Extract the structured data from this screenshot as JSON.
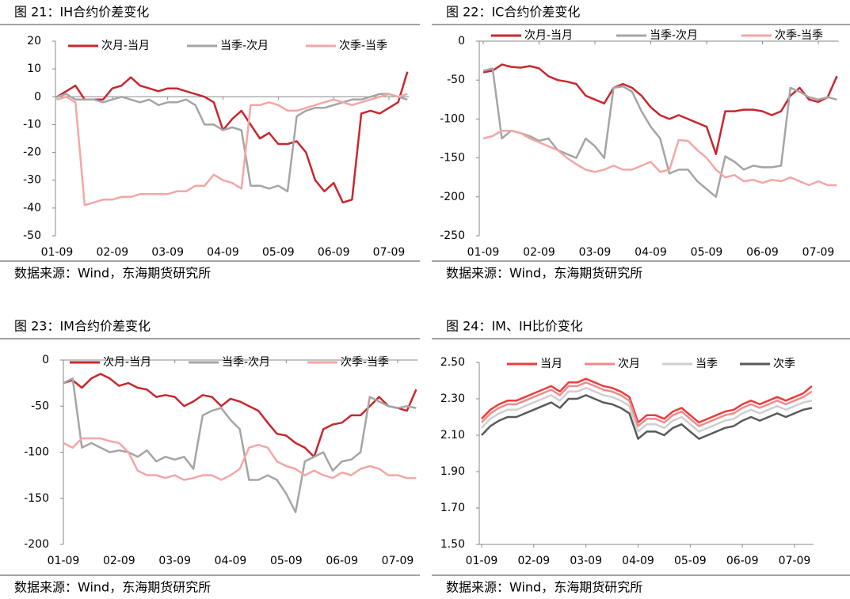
{
  "chart_data": [
    {
      "type": "line",
      "title": "图 21：IH合约价差变化",
      "source": "数据来源：Wind，东海期货研究所",
      "categories": [
        "01-09",
        null,
        null,
        null,
        null,
        null,
        "02-09",
        null,
        null,
        null,
        null,
        null,
        "03-09",
        null,
        null,
        null,
        null,
        null,
        "04-09",
        null,
        null,
        null,
        null,
        null,
        "05-09",
        null,
        null,
        null,
        null,
        null,
        "06-09",
        null,
        null,
        null,
        null,
        null,
        "07-09",
        null,
        null
      ],
      "series": [
        {
          "name": "次月-当月",
          "color": "#c8272d",
          "values": [
            0,
            2,
            4,
            -1,
            -1,
            -1,
            3,
            4,
            7,
            4,
            3,
            2,
            3,
            3,
            2,
            1,
            0,
            -2,
            -12,
            -8,
            -5,
            -10,
            -15,
            -13,
            -17,
            -17,
            -16,
            -20,
            -30,
            -34,
            -31,
            -38,
            -37,
            -6,
            -5,
            -6,
            -4,
            -2,
            9
          ]
        },
        {
          "name": "当季-次月",
          "color": "#a5a5a5",
          "values": [
            0,
            1,
            -1,
            -1,
            -1,
            -2,
            -1,
            0,
            -1,
            -2,
            -1,
            -3,
            -2,
            -2,
            -1,
            -3,
            -10,
            -10,
            -12,
            -11,
            -12,
            -32,
            -32,
            -33,
            -32,
            -34,
            -7,
            -5,
            -4,
            -4,
            -3,
            -2,
            -1,
            -1,
            0,
            1,
            1,
            0,
            -1
          ]
        },
        {
          "name": "次季-当季",
          "color": "#f2a7a5",
          "values": [
            -1,
            0,
            -2,
            -39,
            -38,
            -37,
            -37,
            -36,
            -36,
            -35,
            -35,
            -35,
            -35,
            -34,
            -34,
            -32,
            -32,
            -28,
            -30,
            -31,
            -33,
            -3,
            -3,
            -2,
            -3,
            -5,
            -5,
            -4,
            -3,
            -2,
            -1,
            -2,
            -3,
            -2,
            -1,
            0,
            1,
            0,
            1
          ]
        }
      ],
      "ylim": [
        -50,
        20
      ],
      "yticks": [
        -50,
        -40,
        -30,
        -20,
        -10,
        0,
        10,
        20
      ],
      "legend": "top"
    },
    {
      "type": "line",
      "title": "图 22：IC合约价差变化",
      "source": "数据来源：Wind，东海期货研究所",
      "categories": [
        "01-09",
        null,
        null,
        null,
        null,
        null,
        "02-09",
        null,
        null,
        null,
        null,
        null,
        "03-09",
        null,
        null,
        null,
        null,
        null,
        "04-09",
        null,
        null,
        null,
        null,
        null,
        "05-09",
        null,
        null,
        null,
        null,
        null,
        "06-09",
        null,
        null,
        null,
        null,
        null,
        "07-09",
        null,
        null
      ],
      "series": [
        {
          "name": "次月-当月",
          "color": "#c8272d",
          "values": [
            -40,
            -38,
            -30,
            -33,
            -34,
            -32,
            -35,
            -45,
            -50,
            -52,
            -55,
            -70,
            -75,
            -80,
            -60,
            -55,
            -60,
            -70,
            -85,
            -95,
            -100,
            -95,
            -100,
            -105,
            -110,
            -145,
            -90,
            -90,
            -88,
            -88,
            -90,
            -95,
            -90,
            -70,
            -60,
            -75,
            -78,
            -72,
            -45
          ]
        },
        {
          "name": "当季-次月",
          "color": "#a5a5a5",
          "values": [
            -38,
            -35,
            -125,
            -115,
            -118,
            -122,
            -128,
            -125,
            -140,
            -145,
            -150,
            -125,
            -135,
            -150,
            -60,
            -58,
            -65,
            -90,
            -110,
            -125,
            -170,
            -165,
            -165,
            -180,
            -190,
            -200,
            -148,
            -155,
            -165,
            -160,
            -162,
            -162,
            -160,
            -60,
            -65,
            -72,
            -75,
            -72,
            -75
          ]
        },
        {
          "name": "次季-当季",
          "color": "#f2a7a5",
          "values": [
            -125,
            -122,
            -115,
            -115,
            -118,
            -125,
            -130,
            -135,
            -140,
            -150,
            -158,
            -165,
            -168,
            -165,
            -160,
            -165,
            -165,
            -160,
            -155,
            -168,
            -165,
            -127,
            -128,
            -140,
            -150,
            -165,
            -175,
            -172,
            -180,
            -178,
            -182,
            -178,
            -180,
            -175,
            -180,
            -185,
            -180,
            -185,
            -185
          ]
        }
      ],
      "ylim": [
        -250,
        0
      ],
      "yticks": [
        -250,
        -200,
        -150,
        -100,
        -50,
        0
      ],
      "legend": "top"
    },
    {
      "type": "line",
      "title": "图 23：IM合约价差变化",
      "source": "数据来源：Wind，东海期货研究所",
      "categories": [
        "01-09",
        null,
        null,
        null,
        null,
        null,
        "02-09",
        null,
        null,
        null,
        null,
        null,
        "03-09",
        null,
        null,
        null,
        null,
        null,
        "04-09",
        null,
        null,
        null,
        null,
        null,
        "05-09",
        null,
        null,
        null,
        null,
        null,
        "06-09",
        null,
        null,
        null,
        null,
        null,
        "07-09",
        null,
        null
      ],
      "series": [
        {
          "name": "次月-当月",
          "color": "#c8272d",
          "values": [
            -25,
            -22,
            -30,
            -20,
            -15,
            -20,
            -28,
            -25,
            -30,
            -32,
            -40,
            -38,
            -40,
            -50,
            -45,
            -38,
            -40,
            -50,
            -42,
            -45,
            -50,
            -55,
            -68,
            -80,
            -82,
            -90,
            -95,
            -105,
            -75,
            -70,
            -68,
            -60,
            -60,
            -50,
            -40,
            -50,
            -52,
            -55,
            -32
          ]
        },
        {
          "name": "当季-次月",
          "color": "#a5a5a5",
          "values": [
            -25,
            -20,
            -95,
            -90,
            -95,
            -100,
            -98,
            -100,
            -105,
            -98,
            -110,
            -105,
            -108,
            -105,
            -118,
            -60,
            -55,
            -52,
            -65,
            -75,
            -130,
            -130,
            -125,
            -130,
            -145,
            -165,
            -110,
            -105,
            -100,
            -120,
            -110,
            -108,
            -100,
            -40,
            -45,
            -50,
            -52,
            -50,
            -52
          ]
        },
        {
          "name": "次季-当季",
          "color": "#f2a7a5",
          "values": [
            -90,
            -95,
            -85,
            -85,
            -85,
            -88,
            -90,
            -100,
            -120,
            -125,
            -125,
            -128,
            -125,
            -130,
            -128,
            -125,
            -125,
            -130,
            -125,
            -118,
            -95,
            -92,
            -95,
            -110,
            -115,
            -118,
            -125,
            -120,
            -125,
            -128,
            -122,
            -125,
            -118,
            -115,
            -118,
            -125,
            -125,
            -128,
            -128
          ]
        }
      ],
      "ylim": [
        -200,
        0
      ],
      "yticks": [
        -200,
        -150,
        -100,
        -50,
        0
      ],
      "legend": "top"
    },
    {
      "type": "line",
      "title": "图 24：IM、IH比价变化",
      "source": "数据来源：Wind，东海期货研究所",
      "categories": [
        "01-09",
        null,
        null,
        null,
        null,
        null,
        "02-09",
        null,
        null,
        null,
        null,
        null,
        "03-09",
        null,
        null,
        null,
        null,
        null,
        "04-09",
        null,
        null,
        null,
        null,
        null,
        "05-09",
        null,
        null,
        null,
        null,
        null,
        "06-09",
        null,
        null,
        null,
        null,
        null,
        "07-09",
        null,
        null
      ],
      "series": [
        {
          "name": "当月",
          "color": "#ee3b3b",
          "values": [
            2.19,
            2.24,
            2.27,
            2.29,
            2.29,
            2.31,
            2.33,
            2.35,
            2.37,
            2.34,
            2.39,
            2.39,
            2.41,
            2.39,
            2.37,
            2.36,
            2.34,
            2.31,
            2.17,
            2.21,
            2.21,
            2.19,
            2.23,
            2.25,
            2.21,
            2.17,
            2.19,
            2.21,
            2.23,
            2.24,
            2.27,
            2.29,
            2.27,
            2.29,
            2.31,
            2.29,
            2.31,
            2.33,
            2.37
          ]
        },
        {
          "name": "次月",
          "color": "#f28a8a",
          "values": [
            2.17,
            2.22,
            2.25,
            2.27,
            2.27,
            2.29,
            2.31,
            2.33,
            2.35,
            2.32,
            2.37,
            2.37,
            2.39,
            2.37,
            2.35,
            2.34,
            2.32,
            2.29,
            2.15,
            2.19,
            2.19,
            2.17,
            2.21,
            2.23,
            2.19,
            2.15,
            2.17,
            2.19,
            2.21,
            2.22,
            2.25,
            2.27,
            2.25,
            2.27,
            2.29,
            2.27,
            2.29,
            2.31,
            2.34
          ]
        },
        {
          "name": "当季",
          "color": "#cfcfcf",
          "values": [
            2.14,
            2.19,
            2.22,
            2.24,
            2.24,
            2.26,
            2.28,
            2.3,
            2.32,
            2.29,
            2.34,
            2.34,
            2.36,
            2.34,
            2.32,
            2.31,
            2.29,
            2.26,
            2.12,
            2.16,
            2.16,
            2.14,
            2.18,
            2.2,
            2.16,
            2.12,
            2.14,
            2.16,
            2.18,
            2.19,
            2.22,
            2.24,
            2.22,
            2.24,
            2.26,
            2.24,
            2.26,
            2.28,
            2.29
          ]
        },
        {
          "name": "次季",
          "color": "#595959",
          "values": [
            2.1,
            2.15,
            2.18,
            2.2,
            2.2,
            2.22,
            2.24,
            2.26,
            2.28,
            2.25,
            2.3,
            2.3,
            2.32,
            2.3,
            2.28,
            2.27,
            2.25,
            2.22,
            2.08,
            2.12,
            2.12,
            2.1,
            2.14,
            2.16,
            2.12,
            2.08,
            2.1,
            2.12,
            2.14,
            2.15,
            2.18,
            2.2,
            2.18,
            2.2,
            2.22,
            2.2,
            2.22,
            2.24,
            2.25
          ]
        }
      ],
      "ylim": [
        1.5,
        2.5
      ],
      "yticks": [
        {
          "value": 1.5,
          "label": "1.50"
        },
        {
          "value": 1.7,
          "label": "1.70"
        },
        {
          "value": 1.9,
          "label": "1.90"
        },
        {
          "value": 2.1,
          "label": "2.10"
        },
        {
          "value": 2.3,
          "label": "2.30"
        },
        {
          "value": 2.5,
          "label": "2.50"
        }
      ],
      "legend": "top"
    }
  ]
}
